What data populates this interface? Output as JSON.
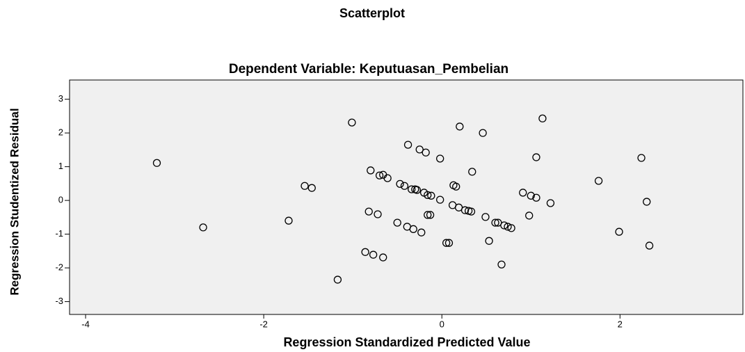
{
  "chart_data": {
    "type": "scatter",
    "title": "Scatterplot",
    "subtitle": "Dependent Variable: Keputuasan_Pembelian",
    "x_label": "Regression Standardized Predicted Value",
    "y_label": "Regression Studentized Residual",
    "xlim": [
      -4.18,
      3.38
    ],
    "ylim": [
      -3.38,
      3.57
    ],
    "xticks": [
      -4,
      -2,
      0,
      2
    ],
    "yticks": [
      -3,
      -2,
      -1,
      0,
      1,
      2,
      3
    ],
    "color": "#000000",
    "x": [
      -3.2,
      -2.68,
      -1.72,
      -1.54,
      -1.46,
      -1.17,
      -1.01,
      -0.86,
      -0.8,
      -0.82,
      -0.77,
      -0.72,
      -0.7,
      -0.66,
      -0.66,
      -0.61,
      -0.5,
      -0.47,
      -0.42,
      -0.38,
      -0.39,
      -0.34,
      -0.32,
      -0.3,
      -0.28,
      -0.25,
      -0.23,
      -0.2,
      -0.18,
      -0.16,
      -0.16,
      -0.12,
      -0.13,
      -0.02,
      -0.02,
      0.05,
      0.08,
      0.12,
      0.13,
      0.16,
      0.19,
      0.2,
      0.26,
      0.3,
      0.33,
      0.34,
      0.46,
      0.49,
      0.53,
      0.6,
      0.63,
      0.67,
      0.7,
      0.74,
      0.78,
      0.91,
      0.98,
      1.0,
      1.06,
      1.06,
      1.13,
      1.22,
      1.76,
      1.99,
      2.24,
      2.3,
      2.33
    ],
    "y": [
      1.11,
      -0.8,
      -0.6,
      0.43,
      0.37,
      -2.35,
      2.31,
      -1.53,
      0.89,
      -0.33,
      -1.61,
      -0.41,
      0.74,
      -1.69,
      0.76,
      0.66,
      -0.66,
      0.49,
      0.43,
      1.65,
      -0.78,
      0.33,
      -0.85,
      0.33,
      0.31,
      1.51,
      -0.95,
      0.23,
      1.42,
      0.16,
      -0.43,
      0.14,
      -0.43,
      1.24,
      0.02,
      -1.26,
      -1.26,
      -0.14,
      0.45,
      0.41,
      -0.21,
      2.19,
      -0.29,
      -0.31,
      -0.33,
      0.85,
      2.0,
      -0.49,
      -1.2,
      -0.66,
      -0.66,
      -1.9,
      -0.74,
      -0.78,
      -0.82,
      0.23,
      -0.45,
      0.14,
      0.08,
      1.28,
      2.43,
      -0.08,
      0.58,
      -0.93,
      1.26,
      -0.04,
      -1.34
    ]
  }
}
